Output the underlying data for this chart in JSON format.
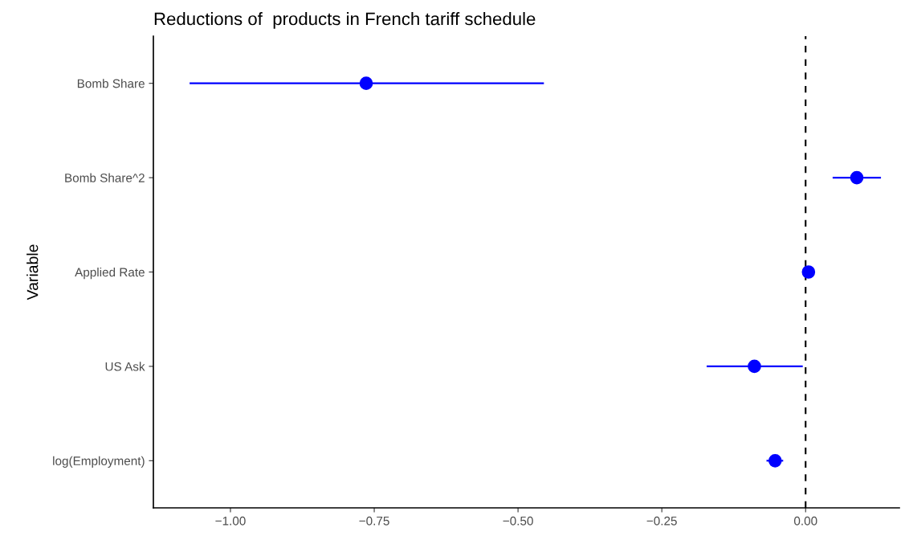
{
  "chart_data": {
    "type": "scatter",
    "orientation": "horizontal",
    "title": "Reductions of  products in French tariff schedule",
    "ylabel": "Variable",
    "categories": [
      "Bomb Share",
      "Bomb Share^2",
      "Applied Rate",
      "US Ask",
      "log(Employment)"
    ],
    "series": [
      {
        "color": "#0000ff",
        "values": [
          -0.764,
          0.089,
          0.005,
          -0.089,
          -0.053
        ],
        "errors": [
          [
            -1.071,
            -0.455
          ],
          [
            0.047,
            0.131
          ],
          null,
          [
            -0.172,
            -0.005
          ],
          [
            -0.068,
            -0.039
          ]
        ]
      }
    ],
    "xlim": [
      -1.134,
      0.163
    ],
    "xticks": [
      {
        "value": -1.0,
        "label": "−1.00"
      },
      {
        "value": -0.75,
        "label": "−0.75"
      },
      {
        "value": -0.5,
        "label": "−0.50"
      },
      {
        "value": -0.25,
        "label": "−0.25"
      },
      {
        "value": 0.0,
        "label": "0.00"
      }
    ],
    "ref_lines": [
      {
        "axis": "x",
        "value": 0,
        "color": "#000000",
        "line_style": "dashed"
      }
    ],
    "grid": false,
    "legend": false,
    "marker": "circle"
  }
}
